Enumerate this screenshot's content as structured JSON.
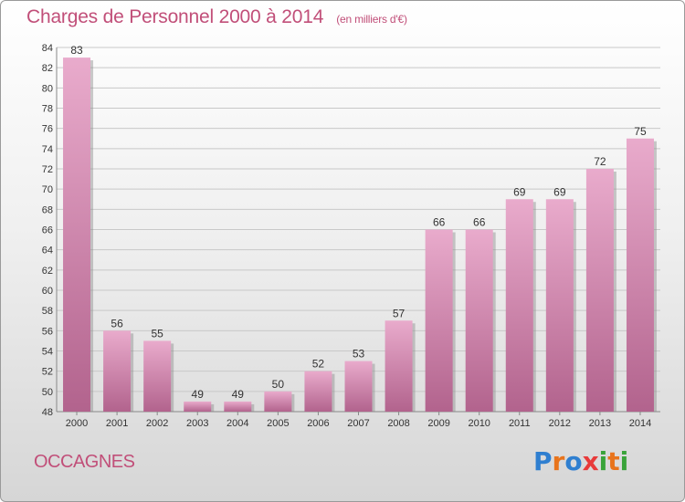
{
  "header": {
    "title": "Charges de Personnel 2000 à 2014",
    "subtitle": "(en milliers d'€)"
  },
  "footer": {
    "commune": "OCCAGNES",
    "logo_letters": [
      "P",
      "r",
      "o",
      "x",
      "i",
      "t",
      "i"
    ],
    "logo_colors": [
      "#2f7fd0",
      "#e8741c",
      "#2f7fd0",
      "#e83a3a",
      "#3aa33a",
      "#e8741c",
      "#3aa33a"
    ]
  },
  "colors": {
    "title": "#c14f79",
    "bar_top": "#e9abcc",
    "bar_bottom": "#b2638d",
    "bar_shadow": "#8c8c8c",
    "grid": "#c8c8c8"
  },
  "chart_data": {
    "type": "bar",
    "categories": [
      "2000",
      "2001",
      "2002",
      "2003",
      "2004",
      "2005",
      "2006",
      "2007",
      "2008",
      "2009",
      "2010",
      "2011",
      "2012",
      "2013",
      "2014"
    ],
    "values": [
      83,
      56,
      55,
      49,
      49,
      50,
      52,
      53,
      57,
      66,
      66,
      69,
      69,
      72,
      75
    ],
    "ylim": [
      48,
      84
    ],
    "yticks": [
      48,
      50,
      52,
      54,
      56,
      58,
      60,
      62,
      64,
      66,
      68,
      70,
      72,
      74,
      76,
      78,
      80,
      82,
      84
    ],
    "grid": true
  }
}
